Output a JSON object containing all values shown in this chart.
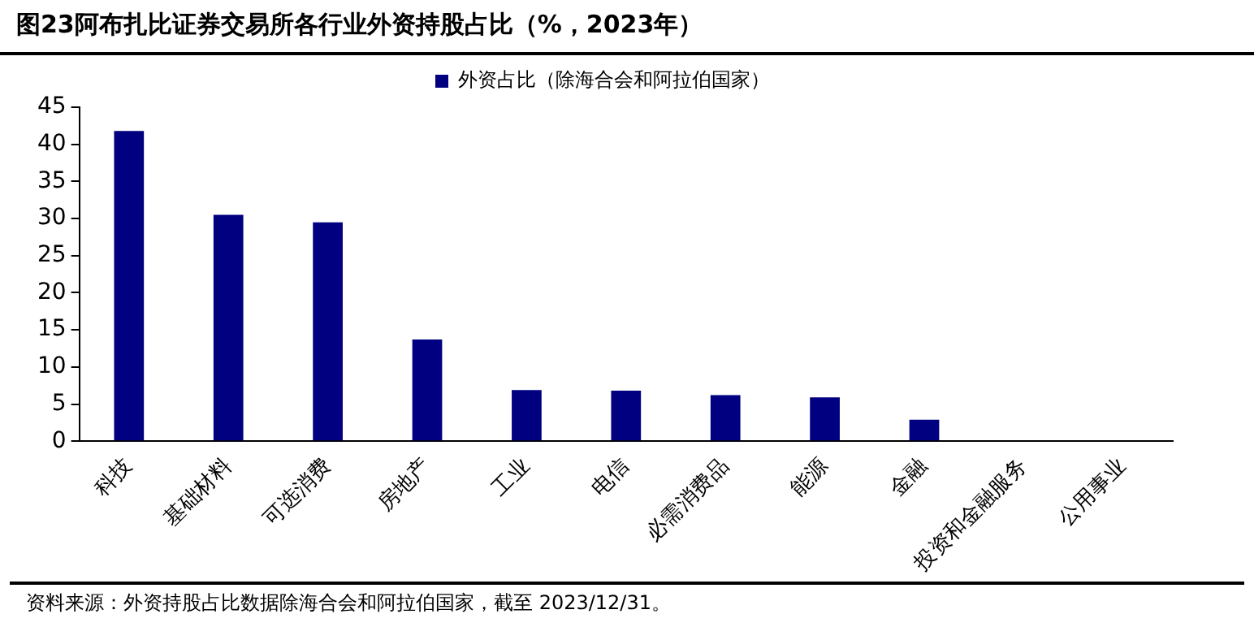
{
  "chart_data": {
    "type": "bar",
    "title": "图23阿布扎比证券交易所各行业外资持股占比（%，2023年）",
    "categories": [
      "科技",
      "基础材料",
      "可选消费",
      "房地产",
      "工业",
      "电信",
      "必需消费品",
      "能源",
      "金融",
      "投资和金融服务",
      "公用事业"
    ],
    "series": [
      {
        "name": "外资占比（除海合会和阿拉伯国家）",
        "color": "#000080",
        "values": [
          41.8,
          30.5,
          29.5,
          13.7,
          6.9,
          6.8,
          6.2,
          5.9,
          2.9,
          0,
          0
        ]
      }
    ],
    "ylim": [
      0,
      45
    ],
    "yticks": [
      0,
      5,
      10,
      15,
      20,
      25,
      30,
      35,
      40,
      45
    ],
    "grid": false,
    "legend": "top",
    "annotations": [
      "资料来源：外资持股占比数据除海合会和阿拉伯国家，截至 2023/12/31。"
    ]
  }
}
